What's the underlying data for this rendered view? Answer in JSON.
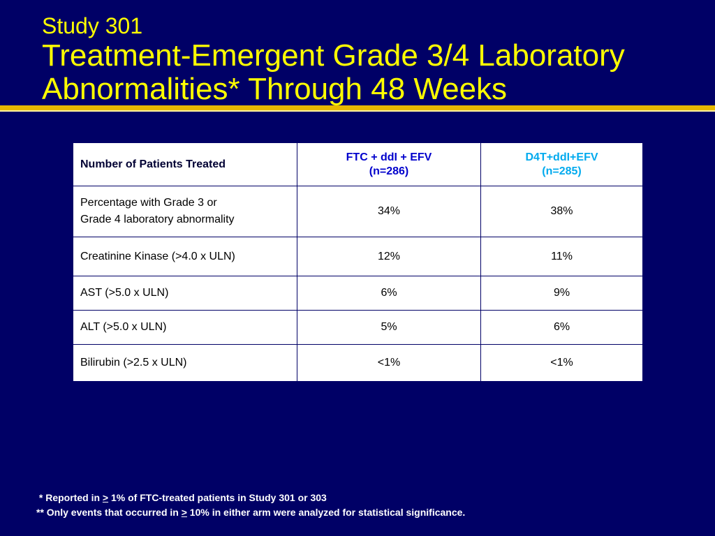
{
  "slide": {
    "title_line1": "Study 301",
    "title_line2": "Treatment-Emergent Grade 3/4 Laboratory Abnormalities* Through 48 Weeks"
  },
  "table": {
    "header": {
      "label": "Number of Patients Treated",
      "arm_a_name": "FTC + ddI + EFV",
      "arm_a_n": "(n=286)",
      "arm_b_name": "D4T+ddI+EFV",
      "arm_b_n": "(n=285)"
    },
    "rows": [
      {
        "label_1": "Percentage with Grade 3 or",
        "label_2": "Grade 4 laboratory abnormality",
        "a": "34%",
        "b": "38%"
      },
      {
        "label": "Creatinine Kinase (>4.0 x ULN)",
        "a": "12%",
        "b": "11%"
      },
      {
        "label": "AST (>5.0 x ULN)",
        "a": "6%",
        "b": "9%"
      },
      {
        "label": "ALT (>5.0 x ULN)",
        "a": "5%",
        "b": "6%"
      },
      {
        "label": "Bilirubin (>2.5 x ULN)",
        "a": "<1%",
        "b": "<1%"
      }
    ]
  },
  "footnotes": {
    "note1_prefix": "*  Reported in ",
    "note1_symbol": ">",
    "note1_suffix": " 1% of FTC-treated patients in Study 301 or 303",
    "note2_prefix": "** Only events that occurred in ",
    "note2_symbol": ">",
    "note2_suffix": " 10% in either arm were analyzed for statistical significance."
  },
  "colors": {
    "background": "#000066",
    "title": "#ffff00",
    "arm_a_header": "#0000cc",
    "arm_b_header": "#00aaee",
    "rule": "#e6b800"
  }
}
